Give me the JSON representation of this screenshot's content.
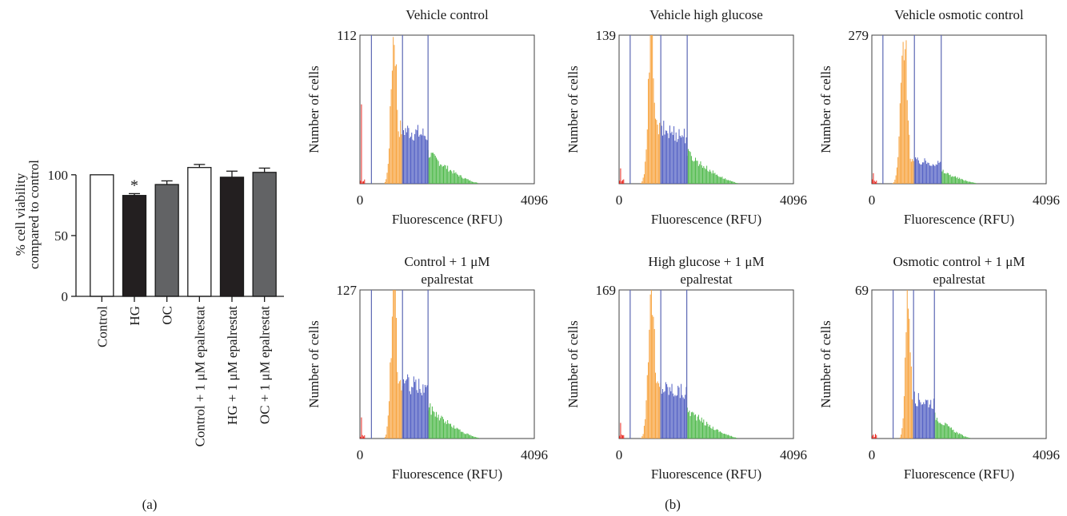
{
  "chart_data": [
    {
      "panel": "(a)",
      "type": "bar",
      "ylabel_lines": [
        "% cell viability",
        "compared to control"
      ],
      "categories": [
        "Control",
        "HG",
        "OC",
        "Control + 1 μM epalrestat",
        "HG + 1 μM epalrestat",
        "OC + 1 μM epalrestat"
      ],
      "values": [
        100,
        83,
        92,
        106,
        98,
        102
      ],
      "errors": [
        0,
        1.5,
        3,
        2.5,
        5,
        3.5
      ],
      "bar_colors": [
        "#ffffff",
        "#231f20",
        "#626365",
        "#ffffff",
        "#231f20",
        "#626365"
      ],
      "significance": [
        "",
        "*",
        "",
        "",
        "",
        ""
      ],
      "yticks": [
        0,
        50,
        100
      ],
      "ylim": [
        0,
        115
      ]
    },
    {
      "panel": "(b)",
      "type": "histogram",
      "xlabel": "Fluorescence (RFU)",
      "ylabel": "Number of cells",
      "xlim": [
        0,
        4096
      ],
      "gate_colors": [
        "#e8241c",
        "#f7a13a",
        "#4e5cc2",
        "#4cb848"
      ],
      "gate_line_color": "#5c68b4",
      "subplots": [
        {
          "title": [
            "Vehicle control"
          ],
          "ymax": 112,
          "gates": [
            270,
            1000,
            1600
          ],
          "peak": 800,
          "peak_width": 70,
          "shoulder_end": 1600,
          "shoulder_level": 0.38,
          "tail_end": 2900,
          "spike": 0.62
        },
        {
          "title": [
            "Vehicle high glucose"
          ],
          "ymax": 139,
          "gates": [
            260,
            980,
            1600
          ],
          "peak": 760,
          "peak_width": 75,
          "shoulder_end": 1600,
          "shoulder_level": 0.38,
          "tail_end": 2900,
          "spike": 0.11
        },
        {
          "title": [
            "Vehicle osmotic control"
          ],
          "ymax": 279,
          "gates": [
            260,
            1000,
            1630
          ],
          "peak": 760,
          "peak_width": 80,
          "shoulder_end": 1630,
          "shoulder_level": 0.16,
          "tail_end": 2600,
          "spike": 0.07
        },
        {
          "title": [
            "Control + 1 μM",
            "epalrestat"
          ],
          "ymax": 127,
          "gates": [
            270,
            1000,
            1600
          ],
          "peak": 800,
          "peak_width": 70,
          "shoulder_end": 1600,
          "shoulder_level": 0.39,
          "tail_end": 2900,
          "spike": 0.13
        },
        {
          "title": [
            "High glucose + 1 μM",
            "epalrestat"
          ],
          "ymax": 169,
          "gates": [
            260,
            980,
            1590
          ],
          "peak": 760,
          "peak_width": 75,
          "shoulder_end": 1590,
          "shoulder_level": 0.36,
          "tail_end": 2900,
          "spike": 0.09
        },
        {
          "title": [
            "Osmotic control + 1 μM",
            "epalrestat"
          ],
          "ymax": 69,
          "gates": [
            500,
            980,
            1470
          ],
          "peak": 850,
          "peak_width": 60,
          "shoulder_end": 1470,
          "shoulder_level": 0.28,
          "tail_end": 2400,
          "spike": 0.03
        }
      ]
    }
  ],
  "labels": {
    "panel_a": "(a)",
    "panel_b": "(b)"
  }
}
